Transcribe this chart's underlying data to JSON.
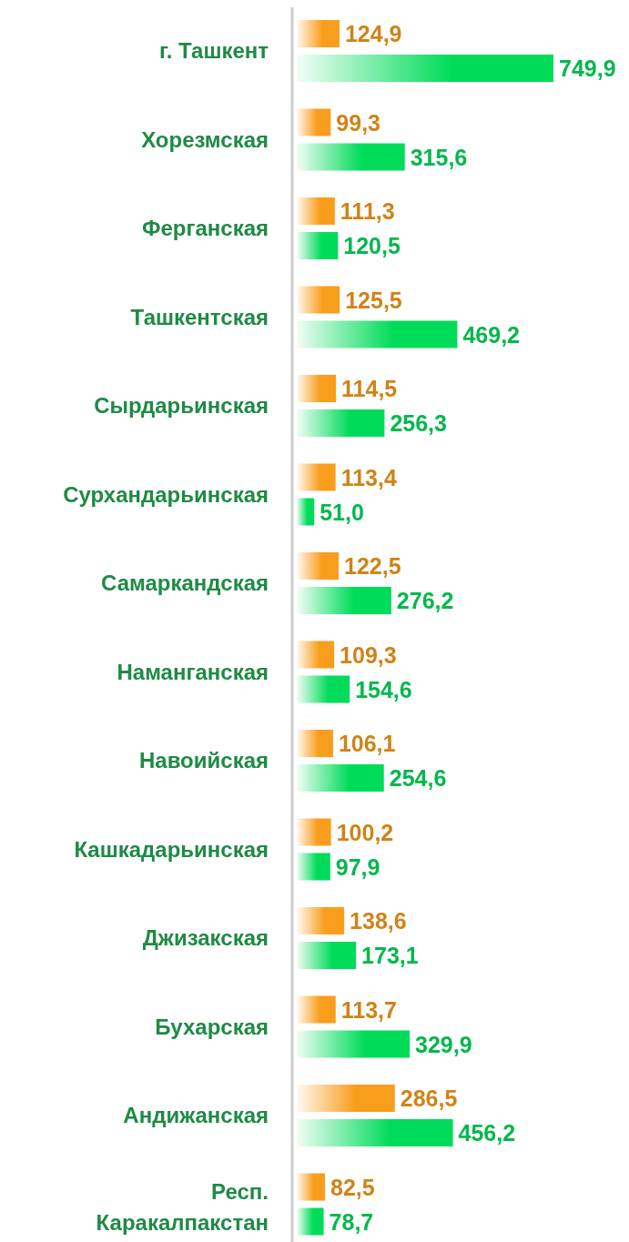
{
  "chart_data": {
    "type": "bar",
    "orientation": "horizontal",
    "categories": [
      "г. Ташкент",
      "Хорезмская",
      "Ферганская",
      "Ташкентская",
      "Сырдарьинская",
      "Сурхандарьинская",
      "Самаркандская",
      "Наманганская",
      "Навоийская",
      "Кашкадарьинская",
      "Джизакская",
      "Бухарская",
      "Андижанская",
      "Респ. Каракалпакстан"
    ],
    "series": [
      {
        "color": "#f99d1c",
        "values": [
          124.9,
          99.3,
          111.3,
          125.5,
          114.5,
          113.4,
          122.5,
          109.3,
          106.1,
          100.2,
          138.6,
          113.7,
          286.5,
          82.5
        ],
        "value_labels": [
          "124,9",
          "99,3",
          "111,3",
          "125,5",
          "114,5",
          "113,4",
          "122,5",
          "109,3",
          "106,1",
          "100,2",
          "138,6",
          "113,7",
          "286,5",
          "82,5"
        ]
      },
      {
        "color": "#00dc5a",
        "values": [
          749.9,
          315.6,
          120.5,
          469.2,
          256.3,
          51.0,
          276.2,
          154.6,
          254.6,
          97.9,
          173.1,
          329.9,
          456.2,
          78.7
        ],
        "value_labels": [
          "749,9",
          "315,6",
          "120,5",
          "469,2",
          "256,3",
          "51,0",
          "276,2",
          "154,6",
          "254,6",
          "97,9",
          "173,1",
          "329,9",
          "456,2",
          "78,7"
        ]
      }
    ]
  }
}
